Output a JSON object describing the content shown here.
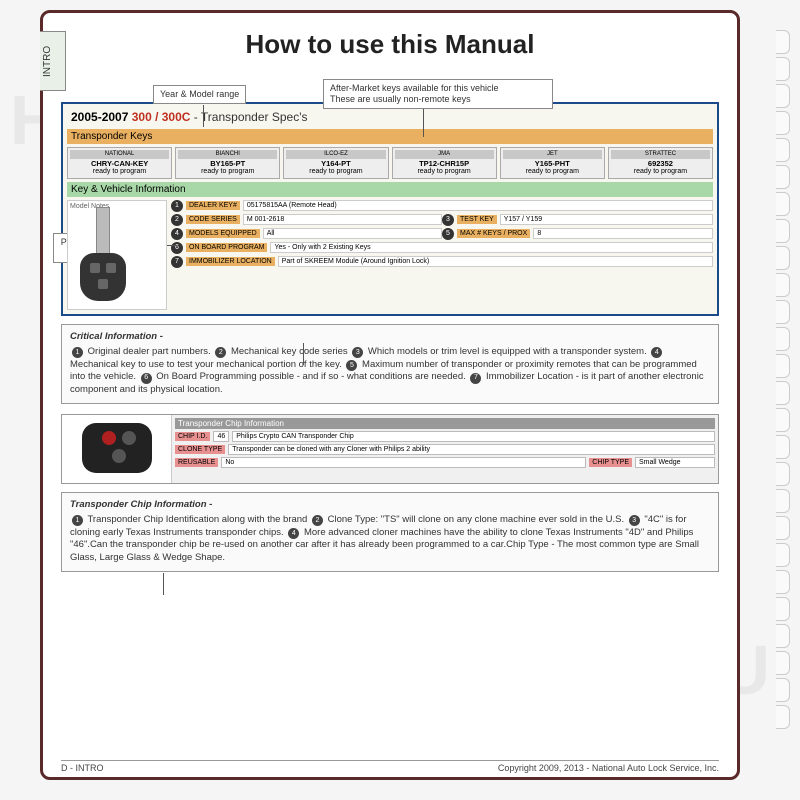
{
  "sideTab": "INTRO",
  "title": "How to use this Manual",
  "watermark": "HGWU",
  "callouts": {
    "yearModel": "Year & Model range",
    "afterMarket": "After-Market keys available for this vehicle\nThese are usually non-remote keys",
    "picture": "Picture of the original factory key",
    "modelNotes": "Model Notes"
  },
  "spec": {
    "years": "2005-2007",
    "model": "300 / 300C",
    "sub": " -  Transponder Spec's",
    "barKeys": "Transponder Keys",
    "cells": [
      {
        "h": "NATIONAL",
        "b": "CHRY-CAN-KEY",
        "s": "ready to program"
      },
      {
        "h": "BIANCHI",
        "b": "BY165-PT",
        "s": "ready to program"
      },
      {
        "h": "ILCO-EZ",
        "b": "Y164-PT",
        "s": "ready to program"
      },
      {
        "h": "JMA",
        "b": "TP12-CHR15P",
        "s": "ready to program"
      },
      {
        "h": "JET",
        "b": "Y165-PHT",
        "s": "ready to program"
      },
      {
        "h": "STRATTEC",
        "b": "692352",
        "s": "ready to program"
      }
    ],
    "barInfo": "Key & Vehicle Information",
    "rows": [
      {
        "n": "1",
        "lbl": "DEALER KEY#",
        "val": "05175815AA (Remote Head)"
      },
      {
        "n": "2",
        "lbl": "CODE SERIES",
        "val": "M 001-2618",
        "n2": "3",
        "lbl2": "TEST KEY",
        "val2": "Y157 / Y159"
      },
      {
        "n": "4",
        "lbl": "MODELS EQUIPPED",
        "val": "All",
        "n2": "5",
        "lbl2": "MAX # KEYS / PROX",
        "val2": "8"
      },
      {
        "n": "6",
        "lbl": "ON BOARD PROGRAM",
        "val": "Yes - Only with 2 Existing Keys"
      },
      {
        "n": "7",
        "lbl": "IMMOBILIZER LOCATION",
        "val": "Part of SKREEM Module   (Around Ignition Lock)"
      }
    ]
  },
  "critical": {
    "title": "Critical Information -",
    "body": "Original dealer part numbers.  Mechanical key code series  Which models or trim level is equipped with a transponder system.  Mechanical key to use to test your mechanical portion of the key.  Maximum number of transponder or proximity remotes that can be programmed into the vehicle.  On Board Programming possible - and if so - what conditions are needed.  Immobilizer Location - is it part of another electronic component and its physical location."
  },
  "chip": {
    "header": "Transponder Chip Information",
    "rows": [
      {
        "lbl": "CHIP I.D.",
        "box": "46",
        "val": "Philips Crypto CAN Transponder Chip"
      },
      {
        "lbl": "CLONE TYPE",
        "val": "Transponder can be cloned with any Cloner with Philips 2 ability"
      },
      {
        "lbl": "REUSABLE",
        "val": "No",
        "lbl2": "CHIP TYPE",
        "val2": "Small Wedge"
      }
    ]
  },
  "chipInfo": {
    "title": "Transponder Chip Information -",
    "body": "Transponder Chip Identification along with the brand  Clone Type: \"TS\" will clone on any clone machine ever sold in the U.S.  \"4C\" is for cloning early Texas Instruments transponder chips.  More advanced cloner machines have the ability to clone Texas Instruments \"4D\" and Philips \"46\".  Can the transponder chip be re-used on another car after it has already been programmed to a car.  Chip Type - The most common type are Small Glass, Large Glass & Wedge Shape."
  },
  "footer": {
    "left": "D - INTRO",
    "right": "Copyright 2009, 2013 - National Auto Lock Service, Inc."
  }
}
